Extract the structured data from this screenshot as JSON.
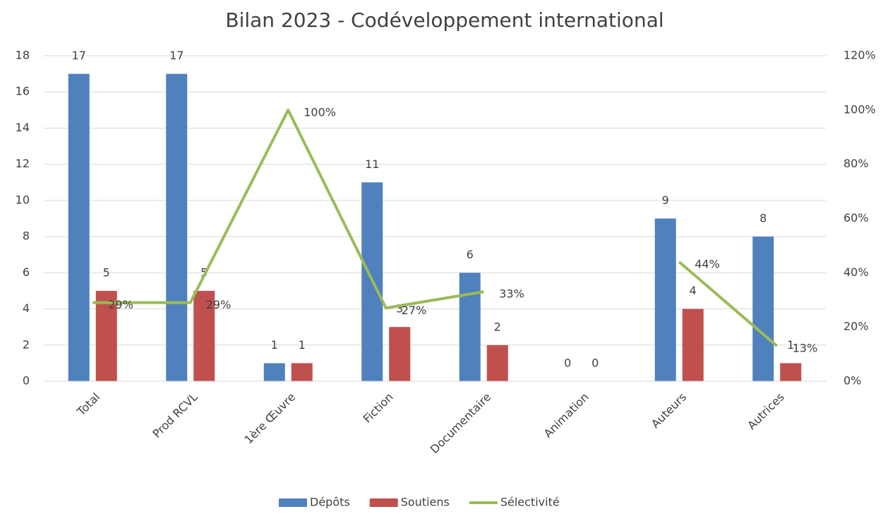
{
  "chart_data": {
    "type": "bar",
    "title": "Bilan 2023 - Codéveloppement international",
    "categories": [
      "Total",
      "Prod RCVL",
      "1ère Œuvre",
      "Fiction",
      "Documentaire",
      "Animation",
      "Auteurs",
      "Autrices"
    ],
    "series": [
      {
        "name": "Dépôts",
        "color": "#4f81bd",
        "type": "bar",
        "values": [
          17,
          17,
          1,
          11,
          6,
          0,
          9,
          8
        ]
      },
      {
        "name": "Soutiens",
        "color": "#c0504d",
        "type": "bar",
        "values": [
          5,
          5,
          1,
          3,
          2,
          0,
          4,
          1
        ]
      },
      {
        "name": "Sélectivité",
        "color": "#9bbb59",
        "type": "line",
        "axis": "y2",
        "values": [
          29,
          29,
          100,
          27,
          33,
          null,
          44,
          13
        ],
        "value_labels": [
          "29%",
          "29%",
          "100%",
          "27%",
          "33%",
          null,
          "44%",
          "13%"
        ]
      }
    ],
    "ylim": [
      0,
      18
    ],
    "yticks": [
      0,
      2,
      4,
      6,
      8,
      10,
      12,
      14,
      16,
      18
    ],
    "y2lim": [
      0,
      120
    ],
    "y2ticks": [
      {
        "value": 0,
        "label": "0%"
      },
      {
        "value": 20,
        "label": "20%"
      },
      {
        "value": 40,
        "label": "40%"
      },
      {
        "value": 60,
        "label": "60%"
      },
      {
        "value": 80,
        "label": "80%"
      },
      {
        "value": 100,
        "label": "100%"
      },
      {
        "value": 120,
        "label": "120%"
      }
    ],
    "grid": true,
    "legend": "bottom"
  }
}
